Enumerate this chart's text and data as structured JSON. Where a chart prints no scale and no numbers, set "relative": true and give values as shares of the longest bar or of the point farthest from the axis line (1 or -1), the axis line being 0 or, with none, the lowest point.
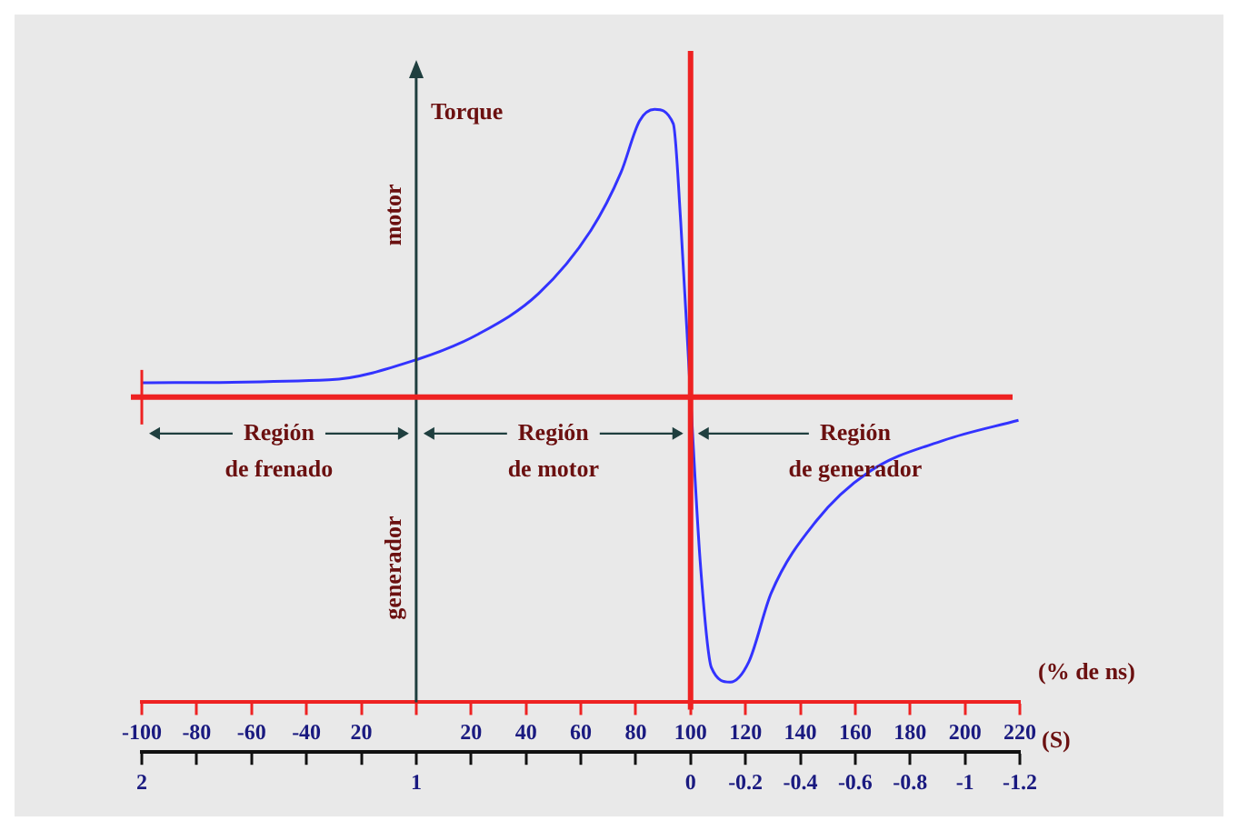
{
  "chart_data": {
    "type": "line",
    "relative": true,
    "ylabel": "Torque",
    "xlabel": "(% de ns)",
    "x2label": "(S)",
    "x": [
      -100,
      -31.8,
      0,
      22.8,
      44.6,
      63.7,
      74.6,
      81.4,
      86.9,
      93.7,
      96.4,
      100,
      103.5,
      107.6,
      114.4,
      121.2,
      129.4,
      145.8,
      164.9,
      192.2,
      219.5
    ],
    "values": [
      0.05,
      0.06,
      0.13,
      0.22,
      0.36,
      0.58,
      0.78,
      0.96,
      1,
      0.95,
      0.61,
      0,
      -0.57,
      -0.94,
      -0.99,
      -0.92,
      -0.68,
      -0.43,
      -0.26,
      -0.15,
      -0.08
    ],
    "color": "#3333ff",
    "xlim": [
      -100,
      220
    ],
    "xticks": [
      -100,
      -80,
      -60,
      -40,
      {
        "value": -20,
        "label": "20"
      },
      {
        "value": 0,
        "label": null
      },
      20,
      40,
      60,
      80,
      100,
      120,
      140,
      160,
      180,
      200,
      220
    ],
    "x2lim": [
      2,
      -1.2
    ],
    "x2ticks": [
      2,
      {
        "value": 1.8,
        "label": null
      },
      {
        "value": 1.6,
        "label": null
      },
      {
        "value": 1.4,
        "label": null
      },
      {
        "value": 1.2,
        "label": null
      },
      1,
      {
        "value": 0.8,
        "label": null
      },
      {
        "value": 0.6,
        "label": null
      },
      {
        "value": 0.4,
        "label": null
      },
      {
        "value": 0.2,
        "label": null
      },
      0,
      -0.2,
      -0.4,
      -0.6,
      -0.8,
      -1,
      -1.2
    ],
    "ref_lines": [
      {
        "axis": "x",
        "value": 100,
        "color": "#ee2222"
      },
      {
        "axis": "y",
        "value": 0,
        "color": "#ee2222"
      }
    ],
    "annotations": [
      "motor",
      "generador",
      "Región de frenado",
      "Región de motor",
      "Región de generador"
    ],
    "grid": false,
    "legend": false
  }
}
